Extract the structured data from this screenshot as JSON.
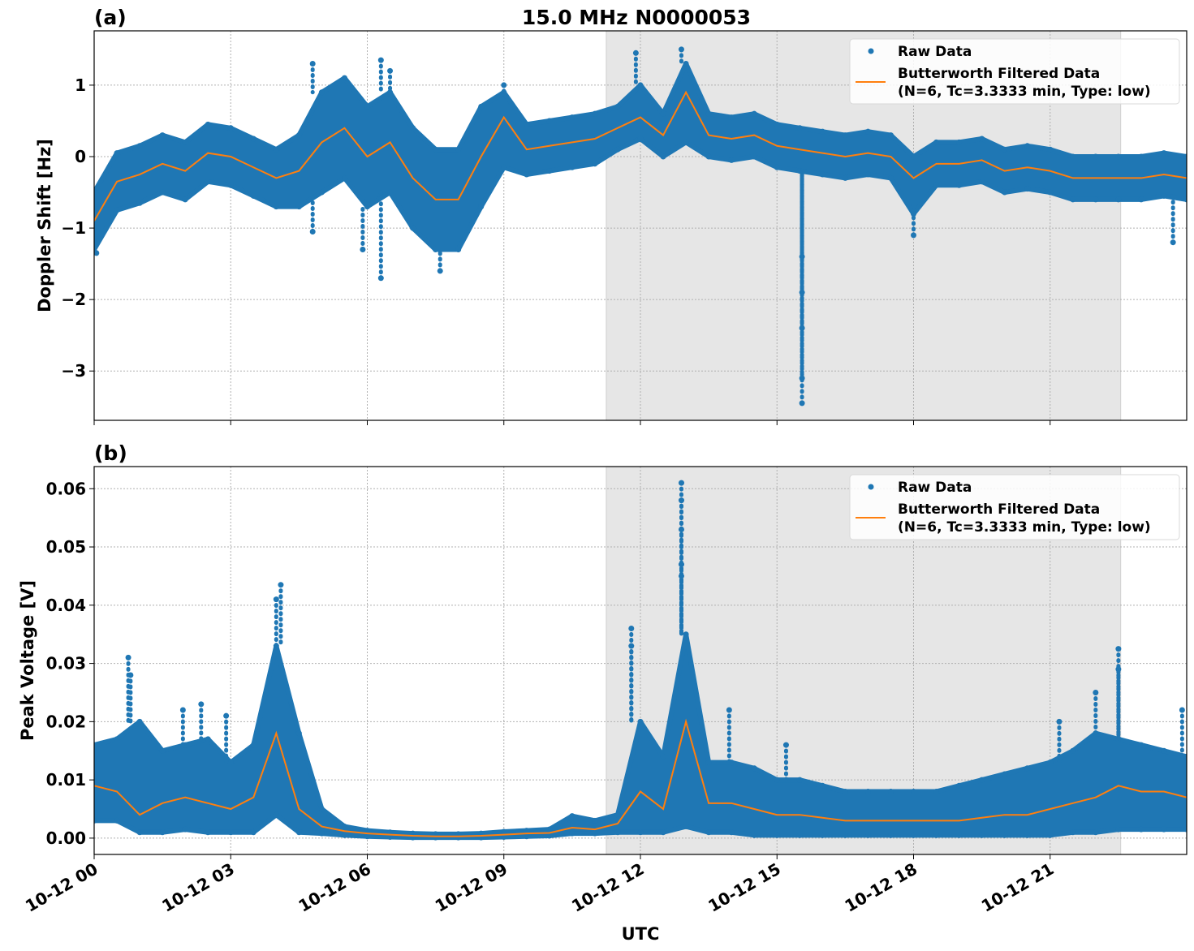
{
  "chart_data": [
    {
      "type": "scatter+line",
      "panel_label": "(a)",
      "title": "15.0 MHz N0000053",
      "ylabel": "Doppler Shift [Hz]",
      "xlabel": "",
      "ylim": [
        -3.69,
        1.76
      ],
      "y_ticks": [
        {
          "v": 1,
          "label": "1"
        },
        {
          "v": 0,
          "label": "0"
        },
        {
          "v": -1,
          "label": "−1"
        },
        {
          "v": -2,
          "label": "−2"
        },
        {
          "v": -3,
          "label": "−3"
        }
      ],
      "grid": true,
      "shaded_interval": [
        "10-12 11:15",
        "10-12 22:33"
      ],
      "legend": {
        "placement": "top-right",
        "entries": [
          "Raw Data",
          "Butterworth Filtered Data",
          "(N=6, Tc=3.3333 min, Type: low)"
        ]
      },
      "series": [
        {
          "name": "Raw Data",
          "kind": "scatter-envelope",
          "raw_high": [
            -0.5,
            0.05,
            0.15,
            0.3,
            0.2,
            0.45,
            0.4,
            0.25,
            0.1,
            0.3,
            0.9,
            1.1,
            0.7,
            0.9,
            0.4,
            0.1,
            0.1,
            0.7,
            0.9,
            0.45,
            0.5,
            0.55,
            0.6,
            0.7,
            1.0,
            0.6,
            1.3,
            0.6,
            0.55,
            0.6,
            0.45,
            0.4,
            0.35,
            0.3,
            0.35,
            0.3,
            0.0,
            0.2,
            0.2,
            0.25,
            0.1,
            0.15,
            0.1,
            0.0,
            0.0,
            0.0,
            0.0,
            0.05,
            0.0
          ],
          "raw_low": [
            -1.3,
            -0.75,
            -0.65,
            -0.5,
            -0.6,
            -0.35,
            -0.4,
            -0.55,
            -0.7,
            -0.7,
            -0.5,
            -0.3,
            -0.7,
            -0.5,
            -1.0,
            -1.3,
            -1.3,
            -0.7,
            -0.15,
            -0.25,
            -0.2,
            -0.15,
            -0.1,
            0.1,
            0.25,
            0.0,
            0.2,
            0.0,
            -0.05,
            0.0,
            -0.15,
            -0.2,
            -0.25,
            -0.3,
            -0.25,
            -0.3,
            -0.8,
            -0.4,
            -0.4,
            -0.35,
            -0.5,
            -0.45,
            -0.5,
            -0.6,
            -0.6,
            -0.6,
            -0.6,
            -0.55,
            -0.6
          ],
          "outliers": [
            [
              "10-12 04:48",
              1.3
            ],
            [
              "10-12 06:18",
              1.35
            ],
            [
              "10-12 06:30",
              1.2
            ],
            [
              "10-12 11:54",
              1.45
            ],
            [
              "10-12 12:54",
              1.5
            ],
            [
              "10-12 09:00",
              1.0
            ],
            [
              "10-12 06:18",
              -1.7
            ],
            [
              "10-12 07:36",
              -1.6
            ],
            [
              "10-12 15:33",
              -3.45
            ],
            [
              "10-12 15:33",
              -3.1
            ],
            [
              "10-12 15:33",
              -2.4
            ],
            [
              "10-12 15:33",
              -1.9
            ],
            [
              "10-12 15:33",
              -1.4
            ],
            [
              "10-12 18:00",
              -1.1
            ],
            [
              "10-12 23:42",
              -1.2
            ],
            [
              "10-12 00:03",
              -1.35
            ],
            [
              "10-12 04:48",
              -1.05
            ],
            [
              "10-12 05:54",
              -1.3
            ]
          ]
        },
        {
          "name": "Butterworth Filtered Data",
          "kind": "line",
          "values": [
            -0.9,
            -0.35,
            -0.25,
            -0.1,
            -0.2,
            0.05,
            0.0,
            -0.15,
            -0.3,
            -0.2,
            0.2,
            0.4,
            0.0,
            0.2,
            -0.3,
            -0.6,
            -0.6,
            0.0,
            0.55,
            0.1,
            0.15,
            0.2,
            0.25,
            0.4,
            0.55,
            0.3,
            0.9,
            0.3,
            0.25,
            0.3,
            0.15,
            0.1,
            0.05,
            0.0,
            0.05,
            0.0,
            -0.3,
            -0.1,
            -0.1,
            -0.05,
            -0.2,
            -0.15,
            -0.2,
            -0.3,
            -0.3,
            -0.3,
            -0.3,
            -0.25,
            -0.3
          ]
        }
      ]
    },
    {
      "type": "scatter+line",
      "panel_label": "(b)",
      "ylabel": "Peak Voltage [V]",
      "xlabel": "UTC",
      "ylim": [
        -0.0028,
        0.0638
      ],
      "y_ticks": [
        {
          "v": 0.06,
          "label": "0.06"
        },
        {
          "v": 0.05,
          "label": "0.05"
        },
        {
          "v": 0.04,
          "label": "0.04"
        },
        {
          "v": 0.03,
          "label": "0.03"
        },
        {
          "v": 0.02,
          "label": "0.02"
        },
        {
          "v": 0.01,
          "label": "0.01"
        },
        {
          "v": 0.0,
          "label": "0.00"
        }
      ],
      "grid": true,
      "shaded_interval": [
        "10-12 11:15",
        "10-12 22:33"
      ],
      "legend": {
        "placement": "top-right",
        "entries": [
          "Raw Data",
          "Butterworth Filtered Data",
          "(N=6, Tc=3.3333 min, Type: low)"
        ]
      },
      "series": [
        {
          "name": "Raw Data",
          "kind": "scatter-envelope",
          "raw_high": [
            0.016,
            0.017,
            0.02,
            0.015,
            0.016,
            0.017,
            0.013,
            0.016,
            0.033,
            0.018,
            0.005,
            0.002,
            0.0013,
            0.001,
            0.0008,
            0.0007,
            0.0007,
            0.0008,
            0.0011,
            0.0013,
            0.0015,
            0.0038,
            0.003,
            0.004,
            0.02,
            0.014,
            0.035,
            0.013,
            0.013,
            0.012,
            0.01,
            0.01,
            0.009,
            0.008,
            0.008,
            0.008,
            0.008,
            0.008,
            0.009,
            0.01,
            0.011,
            0.012,
            0.013,
            0.015,
            0.018,
            0.017,
            0.016,
            0.015,
            0.014
          ],
          "raw_low": [
            0.003,
            0.003,
            0.001,
            0.001,
            0.0015,
            0.001,
            0.001,
            0.001,
            0.004,
            0.001,
            0.0008,
            0.0005,
            0.0003,
            0.0002,
            0.0001,
            0.0001,
            0.0001,
            0.0001,
            0.0002,
            0.0003,
            0.0004,
            0.0008,
            0.0008,
            0.001,
            0.001,
            0.001,
            0.002,
            0.001,
            0.001,
            0.0005,
            0.0005,
            0.0005,
            0.0005,
            0.0005,
            0.0005,
            0.0005,
            0.0005,
            0.0005,
            0.0005,
            0.0005,
            0.0005,
            0.0005,
            0.0005,
            0.001,
            0.001,
            0.0015,
            0.0015,
            0.0015,
            0.0015
          ],
          "outliers": [
            [
              "10-12 00:45",
              0.031
            ],
            [
              "10-12 00:48",
              0.028
            ],
            [
              "10-12 02:21",
              0.023
            ],
            [
              "10-12 01:57",
              0.022
            ],
            [
              "10-12 02:54",
              0.021
            ],
            [
              "10-12 04:00",
              0.041
            ],
            [
              "10-12 04:06",
              0.0435
            ],
            [
              "10-12 11:48",
              0.036
            ],
            [
              "10-12 11:48",
              0.033
            ],
            [
              "10-12 12:54",
              0.061
            ],
            [
              "10-12 12:54",
              0.058
            ],
            [
              "10-12 12:54",
              0.053
            ],
            [
              "10-12 12:54",
              0.047
            ],
            [
              "10-12 12:54",
              0.045
            ],
            [
              "10-12 13:57",
              0.022
            ],
            [
              "10-12 15:12",
              0.016
            ],
            [
              "10-12 22:30",
              0.0325
            ],
            [
              "10-12 22:30",
              0.029
            ],
            [
              "10-12 22:00",
              0.025
            ],
            [
              "10-12 21:12",
              0.02
            ],
            [
              "10-12 23:54",
              0.022
            ]
          ]
        },
        {
          "name": "Butterworth Filtered Data",
          "kind": "line",
          "values": [
            0.009,
            0.008,
            0.004,
            0.006,
            0.007,
            0.006,
            0.005,
            0.007,
            0.018,
            0.005,
            0.002,
            0.0012,
            0.0008,
            0.0006,
            0.0004,
            0.0003,
            0.0003,
            0.0004,
            0.0006,
            0.0008,
            0.0009,
            0.0018,
            0.0015,
            0.0025,
            0.008,
            0.005,
            0.02,
            0.006,
            0.006,
            0.005,
            0.004,
            0.004,
            0.0035,
            0.003,
            0.003,
            0.003,
            0.003,
            0.003,
            0.003,
            0.0035,
            0.004,
            0.004,
            0.005,
            0.006,
            0.007,
            0.009,
            0.008,
            0.008,
            0.007
          ]
        }
      ]
    }
  ],
  "x_shared": {
    "samples": [
      "10-12 00:00",
      "10-12 00:30",
      "10-12 01:00",
      "10-12 01:30",
      "10-12 02:00",
      "10-12 02:30",
      "10-12 03:00",
      "10-12 03:30",
      "10-12 04:00",
      "10-12 04:30",
      "10-12 05:00",
      "10-12 05:30",
      "10-12 06:00",
      "10-12 06:30",
      "10-12 07:00",
      "10-12 07:30",
      "10-12 08:00",
      "10-12 08:30",
      "10-12 09:00",
      "10-12 09:30",
      "10-12 10:00",
      "10-12 10:30",
      "10-12 11:00",
      "10-12 11:30",
      "10-12 12:00",
      "10-12 12:30",
      "10-12 13:00",
      "10-12 13:30",
      "10-12 14:00",
      "10-12 14:30",
      "10-12 15:00",
      "10-12 15:30",
      "10-12 16:00",
      "10-12 16:30",
      "10-12 17:00",
      "10-12 17:30",
      "10-12 18:00",
      "10-12 18:30",
      "10-12 19:00",
      "10-12 19:30",
      "10-12 20:00",
      "10-12 20:30",
      "10-12 21:00",
      "10-12 21:30",
      "10-12 22:00",
      "10-12 22:30",
      "10-12 23:00",
      "10-12 23:30",
      "10-13 00:00"
    ],
    "xlim": [
      "10-12 00:00",
      "10-13 00:00"
    ],
    "ticks": [
      "10-12 00",
      "10-12 03",
      "10-12 06",
      "10-12 09",
      "10-12 12",
      "10-12 15",
      "10-12 18",
      "10-12 21"
    ]
  },
  "colors": {
    "raw": "#1f77b4",
    "filtered": "#ff7f0e",
    "shade": "#e6e6e6"
  }
}
